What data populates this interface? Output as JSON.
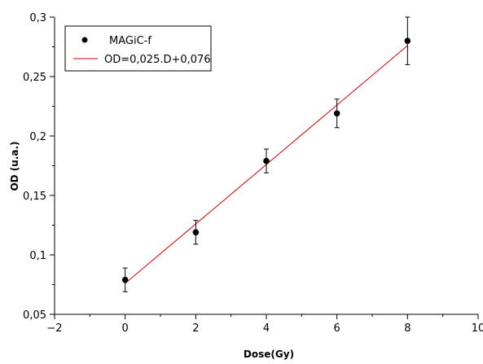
{
  "chart_data": {
    "type": "scatter",
    "title": "",
    "xlabel": "Dose(Gy)",
    "ylabel": "OD (u.a.)",
    "xlim": [
      -2,
      10
    ],
    "ylim": [
      0.05,
      0.3
    ],
    "x_ticks": [
      -2,
      0,
      2,
      4,
      6,
      8,
      10
    ],
    "x_tick_labels": [
      "−2",
      "0",
      "2",
      "4",
      "6",
      "8",
      "10"
    ],
    "y_ticks": [
      0.05,
      0.1,
      0.15,
      0.2,
      0.25,
      0.3
    ],
    "y_tick_labels": [
      "0,05",
      "0,1",
      "0,15",
      "0,2",
      "0,25",
      "0,3"
    ],
    "grid": false,
    "legend_position": "top-left",
    "series": [
      {
        "name": "MAGiC-f",
        "kind": "scatter",
        "color": "#000000",
        "points": [
          {
            "x": 0,
            "y": 0.079,
            "err": 0.01
          },
          {
            "x": 2,
            "y": 0.119,
            "err": 0.01
          },
          {
            "x": 4,
            "y": 0.179,
            "err": 0.01
          },
          {
            "x": 6,
            "y": 0.219,
            "err": 0.012
          },
          {
            "x": 8,
            "y": 0.28,
            "err": 0.02
          }
        ]
      },
      {
        "name": "OD=0,025.D+0,076",
        "kind": "line",
        "color": "#e00000",
        "slope": 0.025,
        "intercept": 0.076,
        "x_range": [
          0,
          8
        ]
      }
    ]
  }
}
